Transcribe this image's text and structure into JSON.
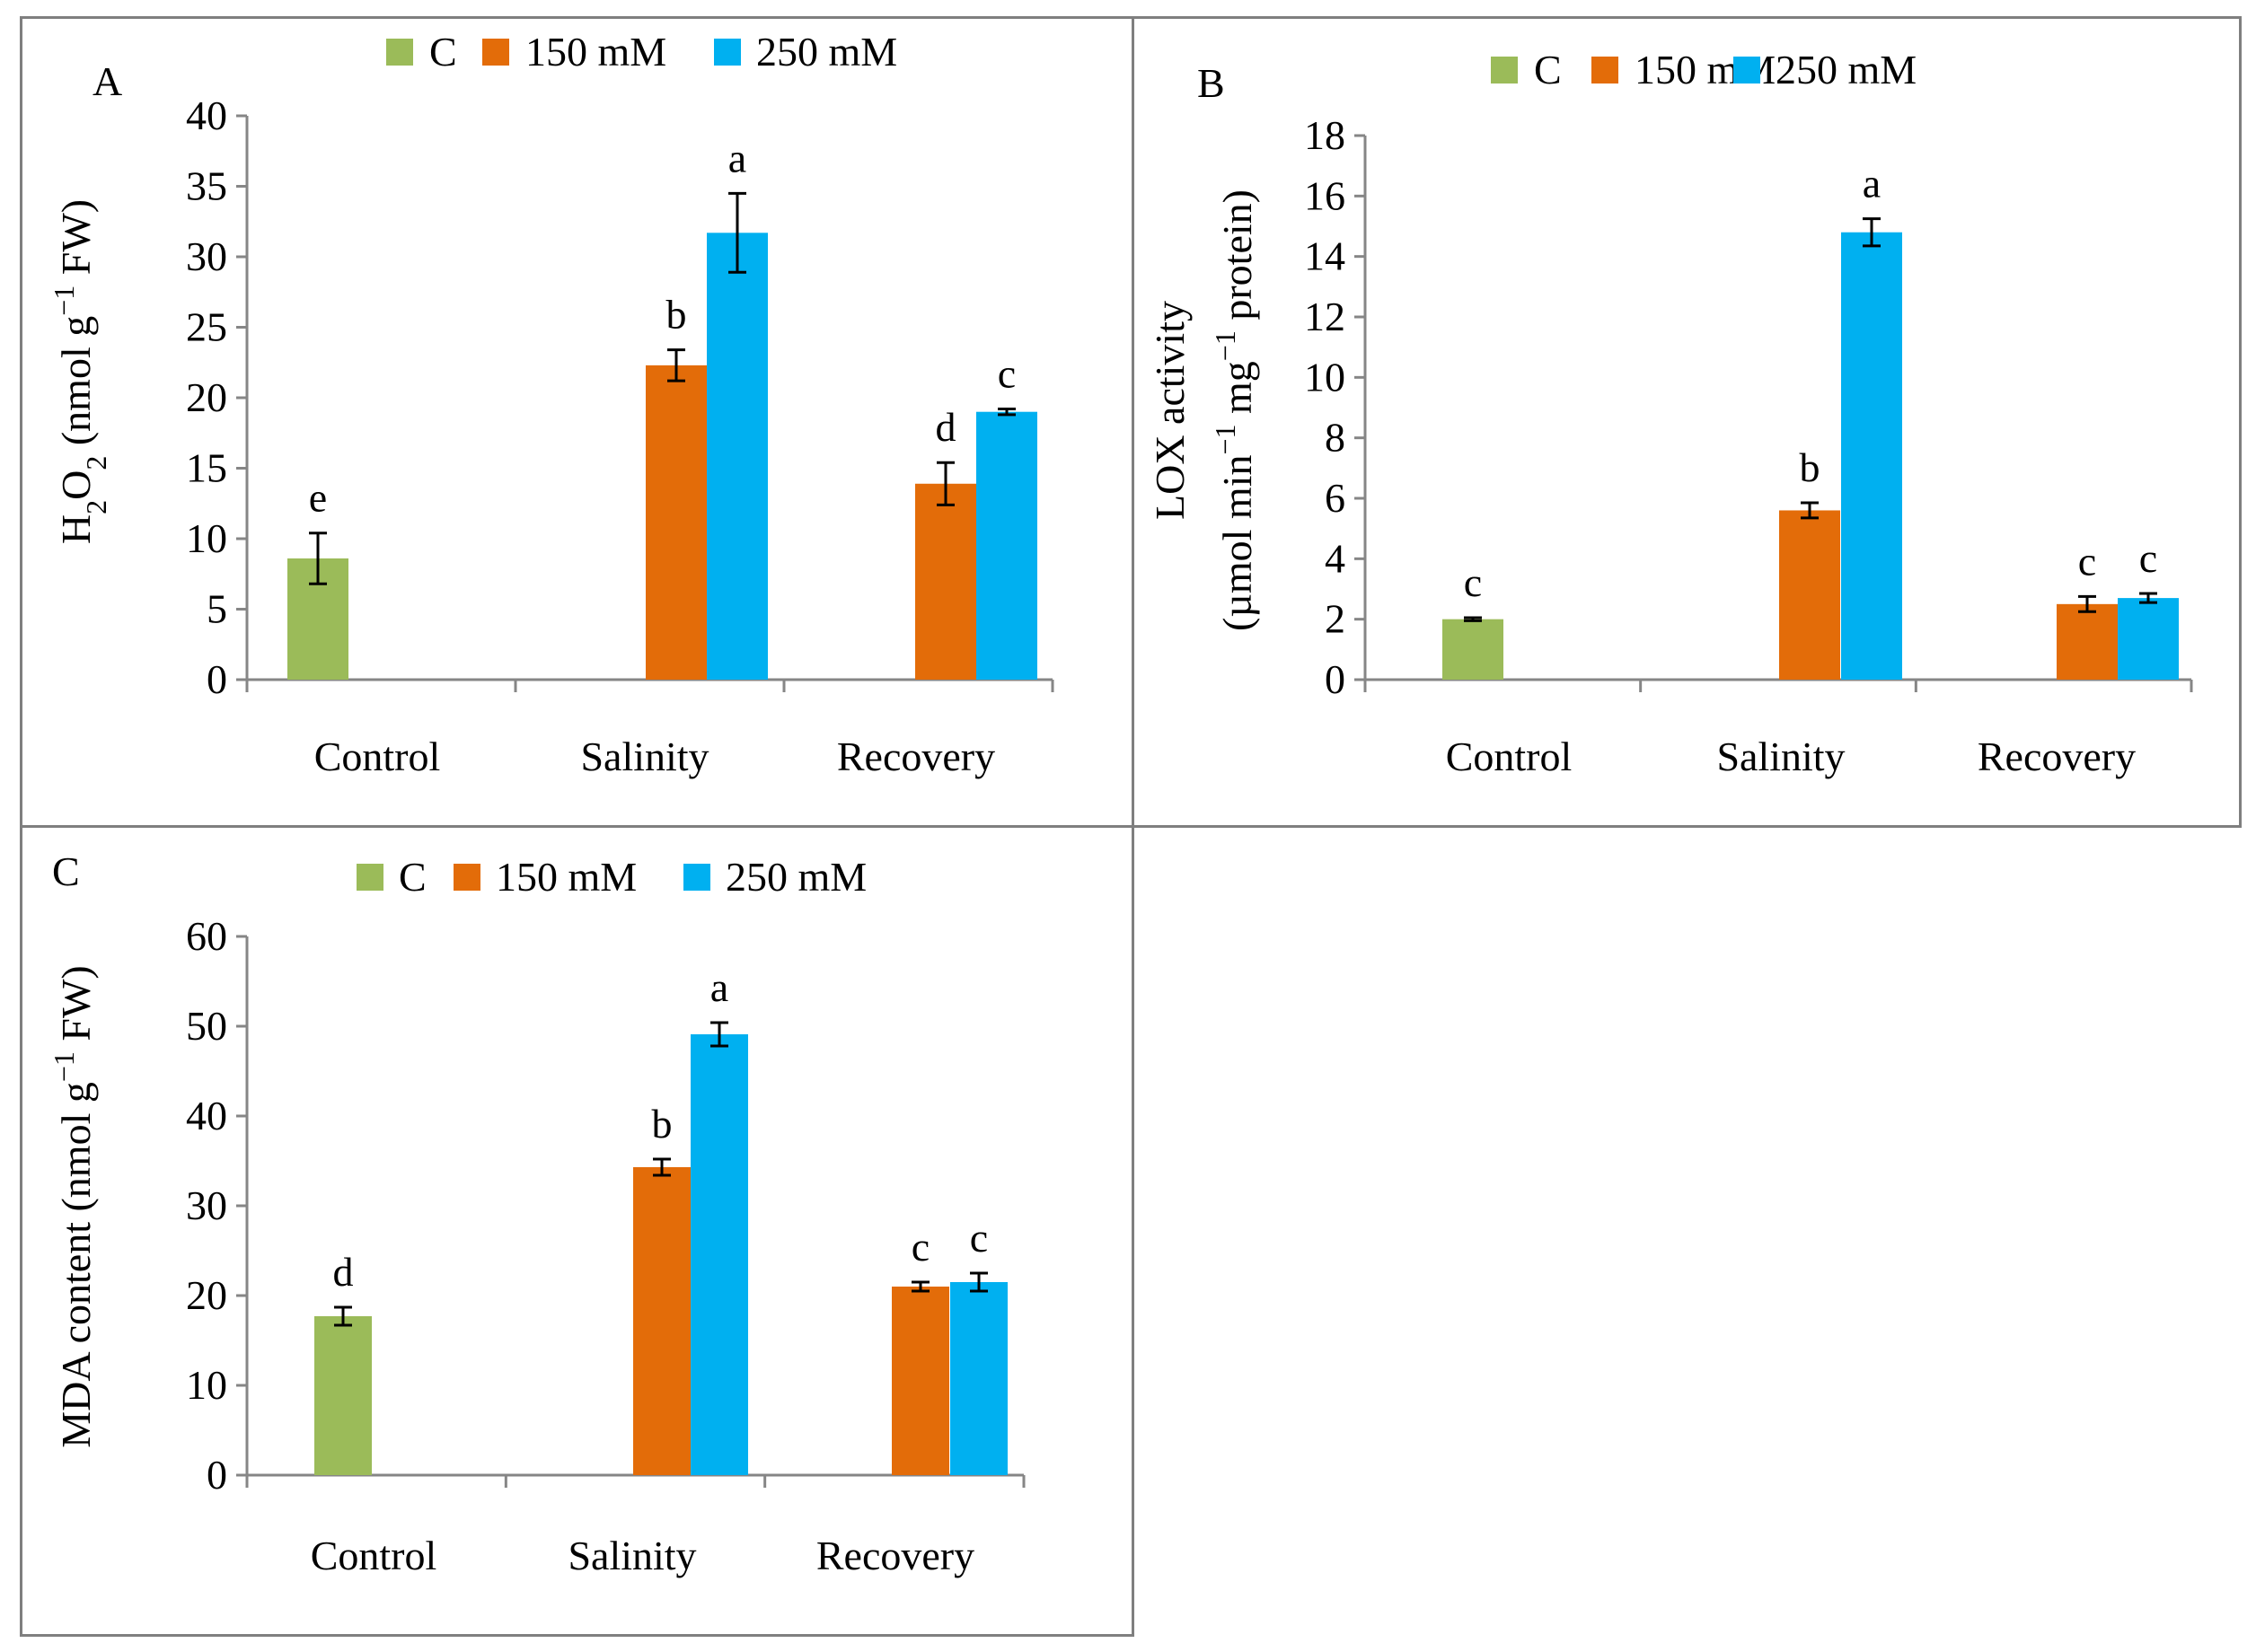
{
  "colors": {
    "control": "#9bbb59",
    "mM150": "#e36c09",
    "mM250": "#00b0f0",
    "axis": "#868686",
    "border": "#7f7f7f"
  },
  "legend": [
    "C",
    "150 mM",
    "250 mM"
  ],
  "chart_data": [
    {
      "panel": "A",
      "type": "bar",
      "title": "",
      "ylabel_main": "H",
      "ylabel_sub1": "2",
      "ylabel_mid": "O",
      "ylabel_sub2": "2",
      "ylabel_rest": " (nmol g",
      "ylabel_sup": "−1",
      "ylabel_end": " FW)",
      "categories": [
        "Control",
        "Salinity",
        "Recovery"
      ],
      "ylim": [
        0,
        40
      ],
      "yticks": [
        0,
        5,
        10,
        15,
        20,
        25,
        30,
        35,
        40
      ],
      "series": [
        {
          "name": "C",
          "values": [
            8.6,
            null,
            null
          ],
          "errors": [
            1.8,
            null,
            null
          ],
          "letters": [
            "e",
            "",
            ""
          ]
        },
        {
          "name": "150 mM",
          "values": [
            null,
            22.3,
            13.9
          ],
          "errors": [
            null,
            1.1,
            1.5
          ],
          "letters": [
            "",
            "b",
            "d"
          ]
        },
        {
          "name": "250 mM",
          "values": [
            null,
            31.7,
            19.0
          ],
          "errors": [
            null,
            2.8,
            0.2
          ],
          "letters": [
            "",
            "a",
            "c"
          ]
        }
      ]
    },
    {
      "panel": "B",
      "type": "bar",
      "title": "",
      "ylabel_line1": "LOX activity",
      "ylabel_line2_a": "(µmol min",
      "ylabel_line2_sup1": "−1",
      "ylabel_line2_b": " mg",
      "ylabel_line2_sup2": "−1",
      "ylabel_line2_c": " protein)",
      "categories": [
        "Control",
        "Salinity",
        "Recovery"
      ],
      "ylim": [
        0,
        18
      ],
      "yticks": [
        0,
        2,
        4,
        6,
        8,
        10,
        12,
        14,
        16,
        18
      ],
      "series": [
        {
          "name": "C",
          "values": [
            2.0,
            null,
            null
          ],
          "errors": [
            0.05,
            null,
            null
          ],
          "letters": [
            "c",
            "",
            ""
          ]
        },
        {
          "name": "150 mM",
          "values": [
            null,
            5.6,
            2.5
          ],
          "errors": [
            null,
            0.25,
            0.25
          ],
          "letters": [
            "",
            "b",
            "c"
          ]
        },
        {
          "name": "250 mM",
          "values": [
            null,
            14.8,
            2.7
          ],
          "errors": [
            null,
            0.45,
            0.15
          ],
          "letters": [
            "",
            "a",
            "c"
          ]
        }
      ]
    },
    {
      "panel": "C",
      "type": "bar",
      "title": "",
      "ylabel_a": "MDA content (nmol g",
      "ylabel_sup": "−1",
      "ylabel_b": " FW)",
      "categories": [
        "Control",
        "Salinity",
        "Recovery"
      ],
      "ylim": [
        0,
        60
      ],
      "yticks": [
        0,
        10,
        20,
        30,
        40,
        50,
        60
      ],
      "series": [
        {
          "name": "C",
          "values": [
            17.7,
            null,
            null
          ],
          "errors": [
            1.0,
            null,
            null
          ],
          "letters": [
            "d",
            "",
            ""
          ]
        },
        {
          "name": "150 mM",
          "values": [
            null,
            34.3,
            21.0
          ],
          "errors": [
            null,
            0.9,
            0.5
          ],
          "letters": [
            "",
            "b",
            "c"
          ]
        },
        {
          "name": "250 mM",
          "values": [
            null,
            49.1,
            21.5
          ],
          "errors": [
            null,
            1.3,
            1.0
          ],
          "letters": [
            "",
            "a",
            "c"
          ]
        }
      ]
    }
  ]
}
